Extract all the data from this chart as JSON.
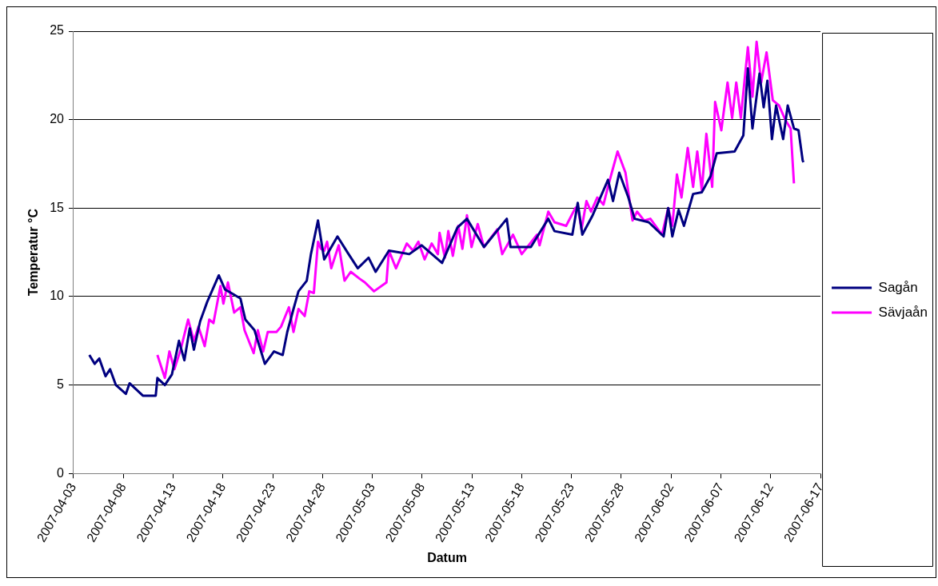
{
  "chart_data": {
    "type": "line",
    "xlabel": "Datum",
    "ylabel": "Temperatur °C",
    "xlim": [
      "2007-04-03",
      "2007-06-17"
    ],
    "xticks": [
      "2007-04-03",
      "2007-04-08",
      "2007-04-13",
      "2007-04-18",
      "2007-04-23",
      "2007-04-28",
      "2007-05-03",
      "2007-05-08",
      "2007-05-13",
      "2007-05-18",
      "2007-05-23",
      "2007-05-28",
      "2007-06-02",
      "2007-06-07",
      "2007-06-12",
      "2007-06-17"
    ],
    "ylim": [
      0,
      25
    ],
    "yticks": [
      0,
      5,
      10,
      15,
      20,
      25
    ],
    "grid": "y",
    "legend": "right",
    "marker": "none",
    "line_style": "solid",
    "series": [
      {
        "name": "Sagån",
        "color": "#000080",
        "x": [
          "2007-04-04T14:00",
          "2007-04-05T03:00",
          "2007-04-05T14:00",
          "2007-04-06T05:00",
          "2007-04-06T16:00",
          "2007-04-07T06:00",
          "2007-04-08T06:00",
          "2007-04-08T15:00",
          "2007-04-09T23:00",
          "2007-04-11T06:00",
          "2007-04-11T10:00",
          "2007-04-12T04:00",
          "2007-04-12T21:00",
          "2007-04-13T14:00",
          "2007-04-14T03:00",
          "2007-04-14T16:00",
          "2007-04-15T02:00",
          "2007-04-15T17:00",
          "2007-04-16T10:00",
          "2007-04-17T14:00",
          "2007-04-18T05:00",
          "2007-04-18T20:00",
          "2007-04-19T18:00",
          "2007-04-20T06:00",
          "2007-04-21T04:00",
          "2007-04-22T05:00",
          "2007-04-23T03:00",
          "2007-04-24T00:00",
          "2007-04-24T11:00",
          "2007-04-25T02:00",
          "2007-04-25T14:00",
          "2007-04-26T10:00",
          "2007-04-26T20:00",
          "2007-04-27T13:00",
          "2007-04-28T04:00",
          "2007-04-29T12:00",
          "2007-04-30T12:00",
          "2007-05-01T13:00",
          "2007-05-02T15:00",
          "2007-05-03T08:00",
          "2007-05-04T16:00",
          "2007-05-06T17:00",
          "2007-05-07T23:00",
          "2007-05-10T00:00",
          "2007-05-11T13:00",
          "2007-05-12T12:00",
          "2007-05-14T05:00",
          "2007-05-16T12:00",
          "2007-05-16T21:00",
          "2007-05-18T22:00",
          "2007-05-20T16:00",
          "2007-05-21T07:00",
          "2007-05-23T02:00",
          "2007-05-23T15:00",
          "2007-05-24T02:00",
          "2007-05-25T03:00",
          "2007-05-26T16:00",
          "2007-05-27T04:00",
          "2007-05-27T19:00",
          "2007-05-28T17:00",
          "2007-05-29T08:00",
          "2007-05-30T18:00",
          "2007-06-01T06:00",
          "2007-06-01T17:00",
          "2007-06-02T03:00",
          "2007-06-02T18:00",
          "2007-06-03T07:00",
          "2007-06-04T05:00",
          "2007-06-05T02:00",
          "2007-06-05T23:00",
          "2007-06-06T14:00",
          "2007-06-08T09:00",
          "2007-06-09T06:00",
          "2007-06-09T17:00",
          "2007-06-10T04:00",
          "2007-06-10T21:00",
          "2007-06-11T07:00",
          "2007-06-11T16:00",
          "2007-06-12T03:00",
          "2007-06-12T13:00",
          "2007-06-13T06:00",
          "2007-06-13T17:00",
          "2007-06-14T08:00",
          "2007-06-14T19:00",
          "2007-06-15T05:00",
          "2007-06-15T07:00"
        ],
        "values": [
          6.7,
          6.2,
          6.5,
          5.5,
          5.9,
          5.0,
          4.5,
          5.1,
          4.4,
          4.4,
          5.4,
          5.0,
          5.6,
          7.5,
          6.4,
          8.2,
          7.0,
          8.6,
          9.7,
          11.2,
          10.4,
          10.2,
          9.9,
          8.7,
          8.1,
          6.2,
          6.9,
          6.7,
          8.0,
          9.3,
          10.3,
          10.9,
          12.4,
          14.3,
          12.1,
          13.4,
          12.5,
          11.6,
          12.2,
          11.4,
          12.6,
          12.4,
          12.9,
          11.9,
          13.9,
          14.4,
          12.8,
          14.4,
          12.8,
          12.8,
          14.4,
          13.7,
          13.5,
          15.3,
          13.5,
          14.6,
          16.6,
          15.4,
          17.0,
          15.6,
          14.4,
          14.2,
          13.4,
          15.0,
          13.4,
          14.9,
          14.0,
          15.8,
          15.9,
          16.8,
          18.1,
          18.2,
          19.1,
          22.9,
          19.5,
          22.6,
          20.7,
          22.2,
          18.9,
          20.8,
          18.9,
          20.8,
          19.5,
          19.4,
          17.7,
          17.6
        ]
      },
      {
        "name": "Sävjaån",
        "color": "#ff00ff",
        "x": [
          "2007-04-11T10:00",
          "2007-04-12T04:00",
          "2007-04-12T15:00",
          "2007-04-13T03:00",
          "2007-04-13T18:00",
          "2007-04-14T12:00",
          "2007-04-15T02:00",
          "2007-04-15T13:00",
          "2007-04-16T04:00",
          "2007-04-16T15:00",
          "2007-04-17T01:00",
          "2007-04-17T18:00",
          "2007-04-18T01:00",
          "2007-04-18T12:00",
          "2007-04-19T03:00",
          "2007-04-19T18:00",
          "2007-04-20T04:00",
          "2007-04-21T02:00",
          "2007-04-21T12:00",
          "2007-04-22T01:00",
          "2007-04-22T12:00",
          "2007-04-23T09:00",
          "2007-04-23T20:00",
          "2007-04-24T15:00",
          "2007-04-25T02:00",
          "2007-04-25T14:00",
          "2007-04-26T05:00",
          "2007-04-26T16:00",
          "2007-04-27T03:00",
          "2007-04-27T13:00",
          "2007-04-27T20:00",
          "2007-04-28T04:00",
          "2007-04-28T11:00",
          "2007-04-28T21:00",
          "2007-04-29T15:00",
          "2007-04-30T05:00",
          "2007-04-30T20:00",
          "2007-05-01T18:00",
          "2007-05-02T06:00",
          "2007-05-03T04:00",
          "2007-05-04T10:00",
          "2007-05-04T16:00",
          "2007-05-05T09:00",
          "2007-05-06T11:00",
          "2007-05-07T02:00",
          "2007-05-07T15:00",
          "2007-05-08T06:00",
          "2007-05-08T23:00",
          "2007-05-09T14:00",
          "2007-05-09T18:00",
          "2007-05-10T07:00",
          "2007-05-10T15:00",
          "2007-05-11T02:00",
          "2007-05-11T15:00",
          "2007-05-12T01:00",
          "2007-05-12T12:00",
          "2007-05-12T23:00",
          "2007-05-13T14:00",
          "2007-05-14T05:00",
          "2007-05-15T13:00",
          "2007-05-16T01:00",
          "2007-05-17T03:00",
          "2007-05-18T00:00",
          "2007-05-19T13:00",
          "2007-05-19T19:00",
          "2007-05-20T16:00",
          "2007-05-21T07:00",
          "2007-05-22T11:00",
          "2007-05-23T09:00",
          "2007-05-23T15:00",
          "2007-05-24T00:00",
          "2007-05-24T12:00",
          "2007-05-24T23:00",
          "2007-05-25T14:00",
          "2007-05-26T05:00",
          "2007-05-26T18:00",
          "2007-05-27T15:00",
          "2007-05-28T10:00",
          "2007-05-29T03:00",
          "2007-05-29T14:00",
          "2007-05-30T07:00",
          "2007-05-30T22:00",
          "2007-06-01T02:00",
          "2007-06-01T17:00",
          "2007-06-02T03:00",
          "2007-06-02T14:00",
          "2007-06-03T01:00",
          "2007-06-03T16:00",
          "2007-06-04T05:00",
          "2007-06-04T15:00",
          "2007-06-05T02:00",
          "2007-06-05T13:00",
          "2007-06-06T03:00",
          "2007-06-06T10:00",
          "2007-06-07T01:00",
          "2007-06-07T16:00",
          "2007-06-08T03:00",
          "2007-06-08T13:00",
          "2007-06-09T00:00",
          "2007-06-09T17:00",
          "2007-06-10T04:00",
          "2007-06-10T14:00",
          "2007-06-11T01:00",
          "2007-06-11T14:00",
          "2007-06-12T05:00",
          "2007-06-12T20:00",
          "2007-06-13T11:00",
          "2007-06-14T00:00",
          "2007-06-14T08:00"
        ],
        "values": [
          6.7,
          5.4,
          6.9,
          5.9,
          7.0,
          8.7,
          7.5,
          8.3,
          7.2,
          8.7,
          8.5,
          10.6,
          9.6,
          10.8,
          9.1,
          9.4,
          8.1,
          6.8,
          8.1,
          6.9,
          8.0,
          8.0,
          8.3,
          9.4,
          8.0,
          9.3,
          8.9,
          10.3,
          10.2,
          13.1,
          12.7,
          12.6,
          13.1,
          11.6,
          12.9,
          10.9,
          11.4,
          11.0,
          10.8,
          10.3,
          10.8,
          12.6,
          11.6,
          13.0,
          12.6,
          13.1,
          12.1,
          13.0,
          12.4,
          13.6,
          12.2,
          13.7,
          12.3,
          14.0,
          12.7,
          14.6,
          12.8,
          14.1,
          12.8,
          13.8,
          12.4,
          13.5,
          12.4,
          13.5,
          12.9,
          14.8,
          14.2,
          14.0,
          15.0,
          15.1,
          13.8,
          15.4,
          14.8,
          15.6,
          15.2,
          16.4,
          18.2,
          17.0,
          14.3,
          14.8,
          14.3,
          14.4,
          13.5,
          15.0,
          14.0,
          16.9,
          15.6,
          18.4,
          16.2,
          18.2,
          16.0,
          19.2,
          16.2,
          21.0,
          19.4,
          22.1,
          20.1,
          22.1,
          20.1,
          24.1,
          21.3,
          24.4,
          22.1,
          23.8,
          21.1,
          20.8,
          20.0,
          19.5,
          16.4
        ]
      }
    ]
  }
}
